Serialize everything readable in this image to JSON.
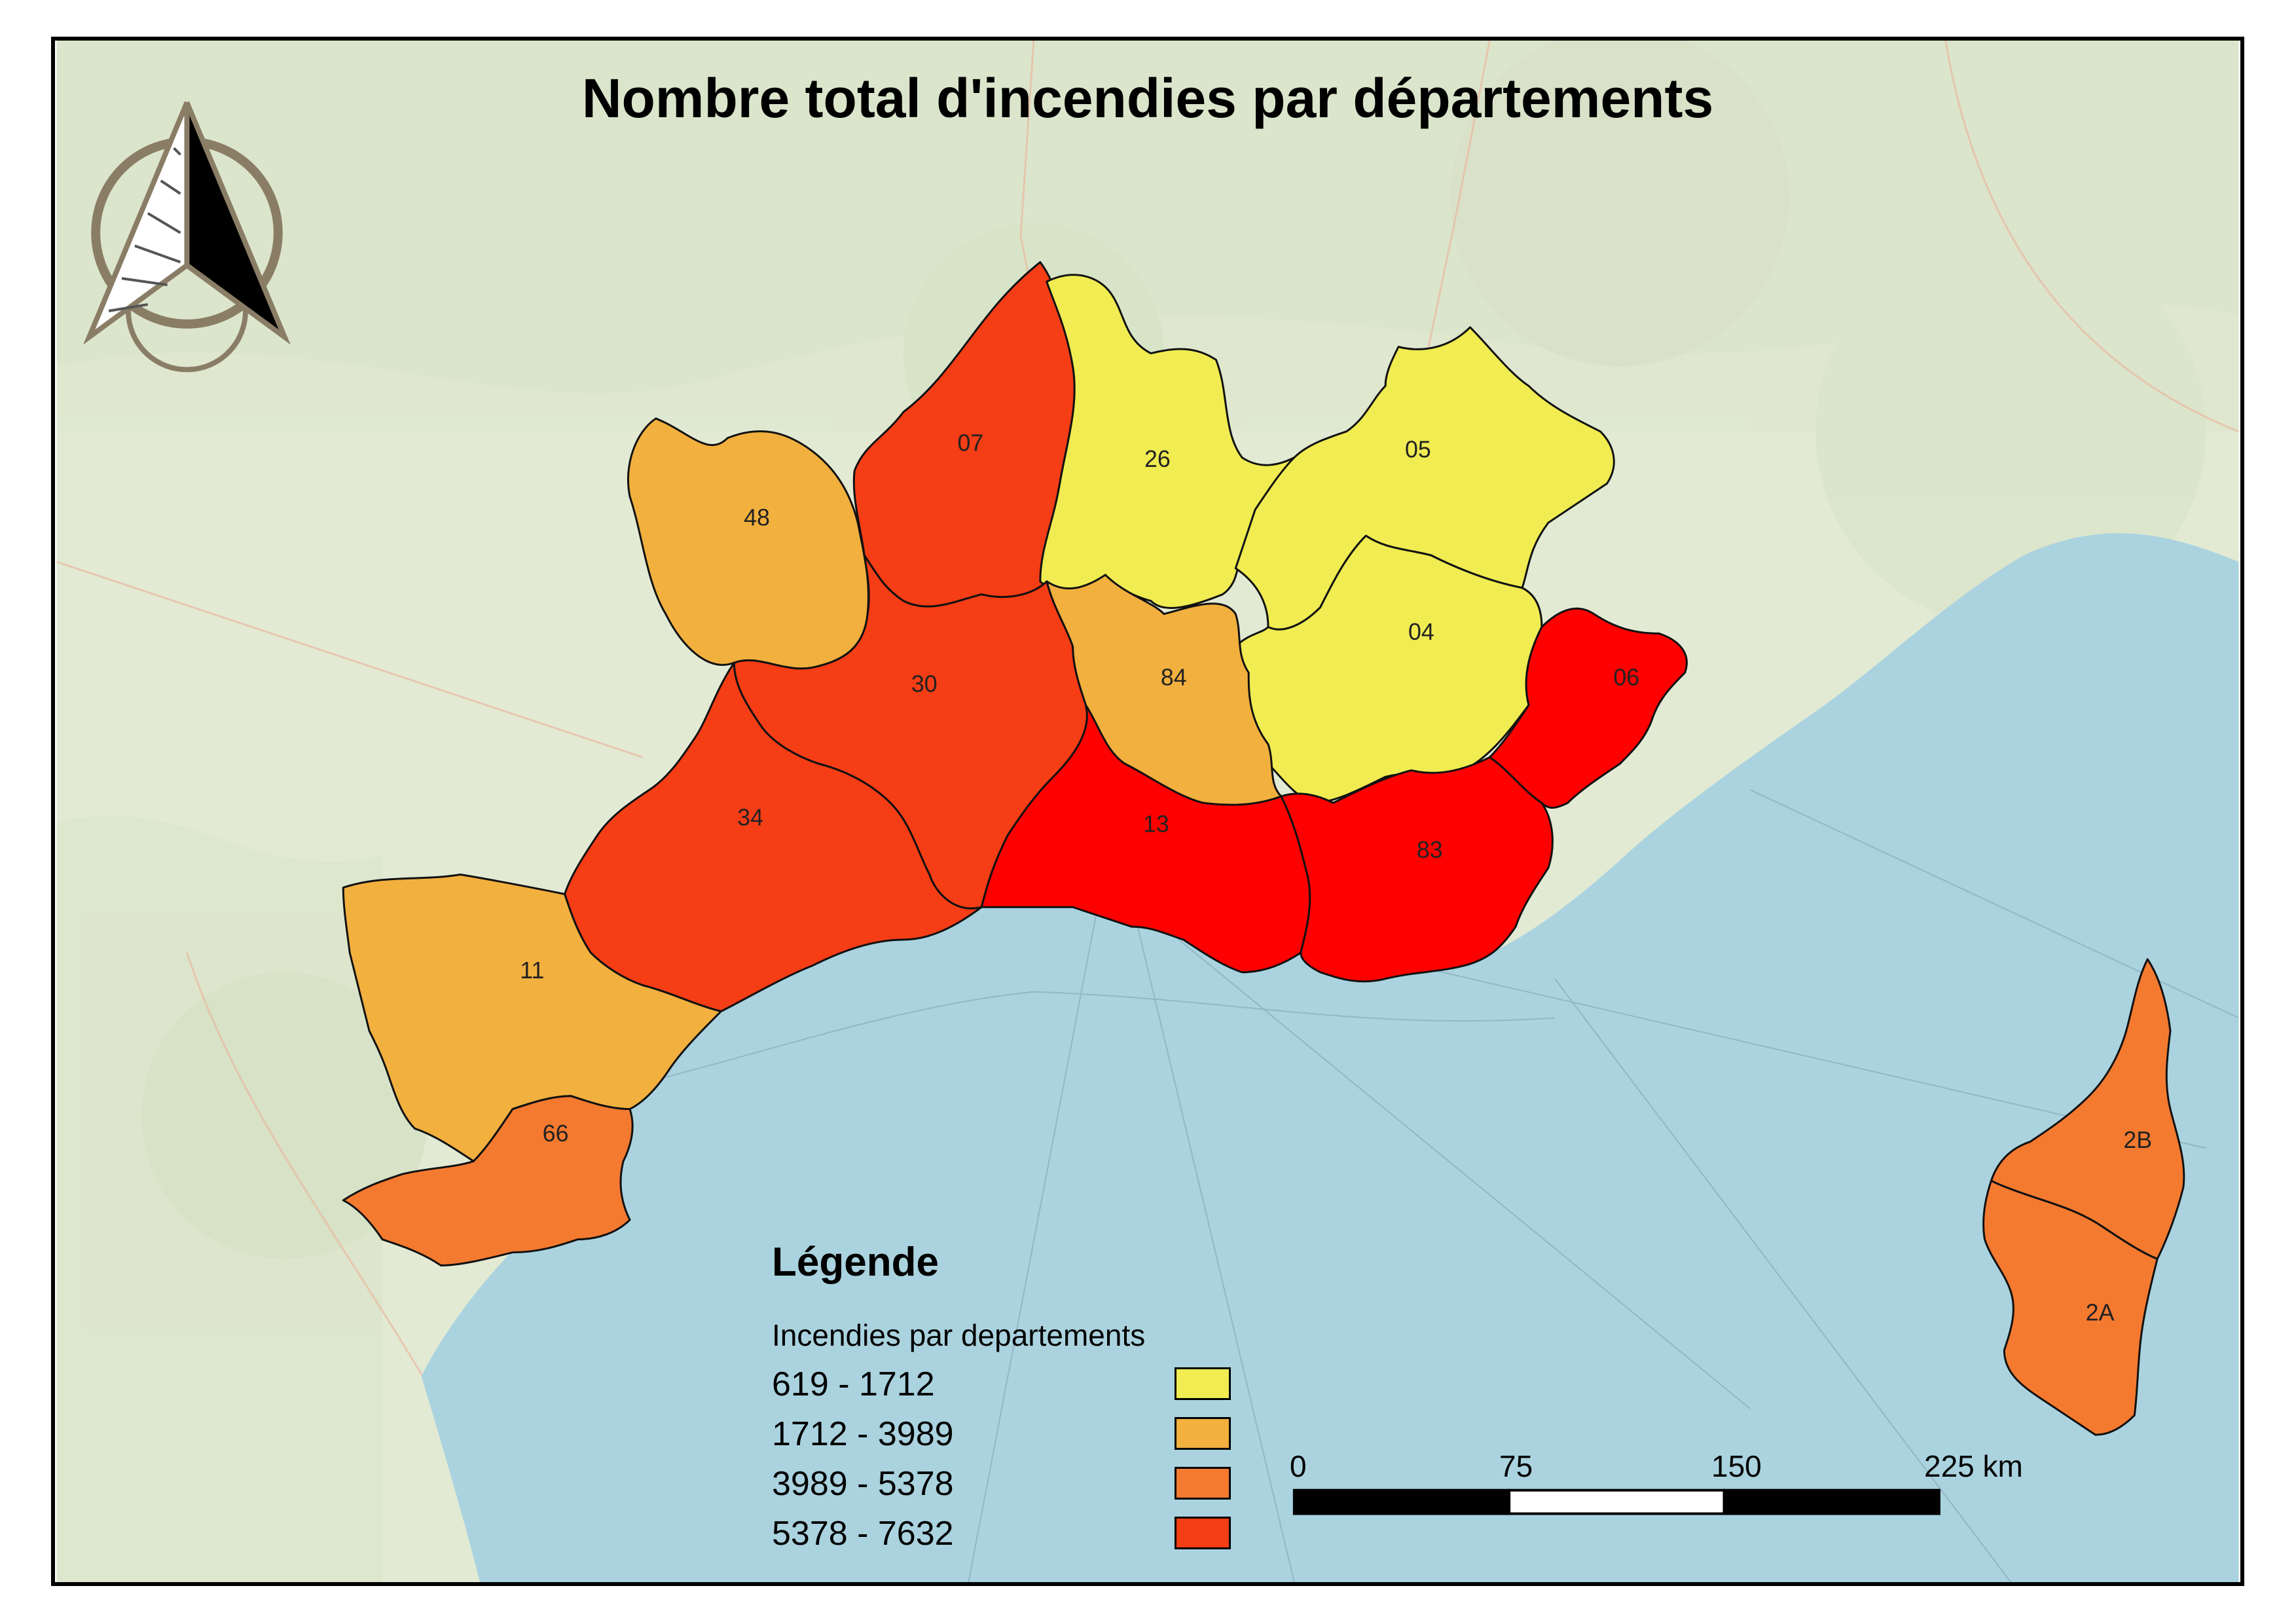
{
  "map": {
    "title": "Nombre total d'incendies par départements",
    "legend": {
      "title": "Légende",
      "subtitle": "Incendies par departements",
      "classes": [
        {
          "label": "619 - 1712",
          "color": "#f0ec52"
        },
        {
          "label": "1712 - 3989",
          "color": "#f2b03f"
        },
        {
          "label": "3989 - 5378",
          "color": "#f47a30"
        },
        {
          "label": "5378 - 7632",
          "color": "#f53d16"
        }
      ]
    },
    "scale_bar": {
      "labels": [
        "0",
        "75",
        "150",
        "225 km"
      ]
    },
    "departments": [
      {
        "code": "48",
        "class": 1
      },
      {
        "code": "07",
        "class": 3
      },
      {
        "code": "26",
        "class": 0
      },
      {
        "code": "05",
        "class": 0
      },
      {
        "code": "04",
        "class": 0
      },
      {
        "code": "06",
        "class": 3
      },
      {
        "code": "84",
        "class": 1
      },
      {
        "code": "30",
        "class": 3
      },
      {
        "code": "34",
        "class": 3
      },
      {
        "code": "13",
        "class": 3
      },
      {
        "code": "83",
        "class": 3
      },
      {
        "code": "11",
        "class": 1
      },
      {
        "code": "66",
        "class": 2
      },
      {
        "code": "2B",
        "class": 2
      },
      {
        "code": "2A",
        "class": 2
      }
    ],
    "colors": {
      "sea": "#aad3df",
      "land": "#dfe9d2",
      "red_dept": "#ff0000"
    },
    "icons": {
      "north_arrow": "north-arrow-icon"
    }
  }
}
